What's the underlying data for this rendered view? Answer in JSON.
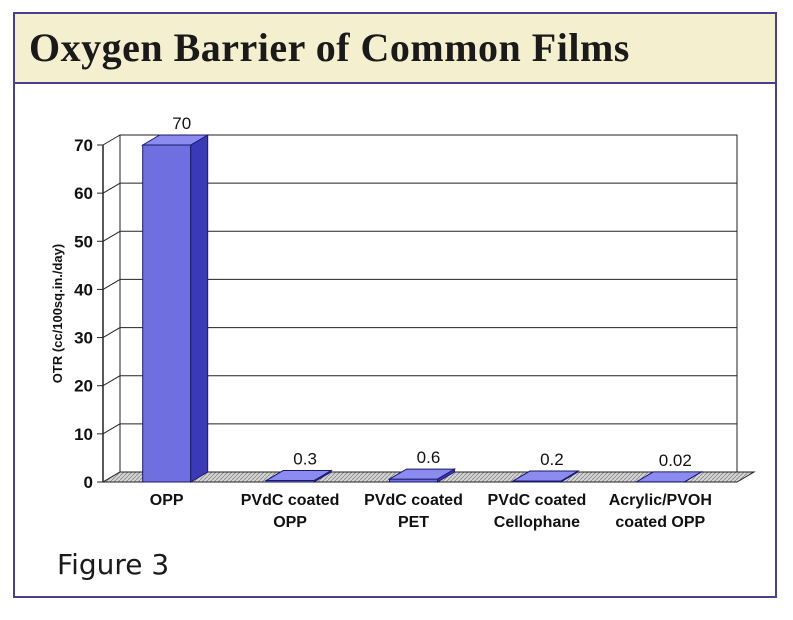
{
  "title": "Oxygen Barrier of Common Films",
  "figure_label": "Figure 3",
  "chart_data": {
    "type": "bar",
    "title": "Oxygen Barrier of Common Films",
    "ylabel": "OTR (cc/100sq.in./day)",
    "xlabel": "",
    "ylim": [
      0,
      70
    ],
    "yticks": [
      0,
      10,
      20,
      30,
      40,
      50,
      60,
      70
    ],
    "categories": [
      [
        "OPP"
      ],
      [
        "PVdC coated",
        "OPP"
      ],
      [
        "PVdC coated",
        "PET"
      ],
      [
        "PVdC coated",
        "Cellophane"
      ],
      [
        "Acrylic/PVOH",
        "coated OPP"
      ]
    ],
    "values": [
      70,
      0.3,
      0.6,
      0.2,
      0.02
    ],
    "value_labels": [
      "70",
      "0.3",
      "0.6",
      "0.2",
      "0.02"
    ],
    "grid": true,
    "style": "3d",
    "colors": {
      "bar_front": "#6f6fe0",
      "bar_side": "#3a3ab8",
      "bar_top": "#8c8cf0",
      "floor": "#cfcfcf"
    }
  }
}
